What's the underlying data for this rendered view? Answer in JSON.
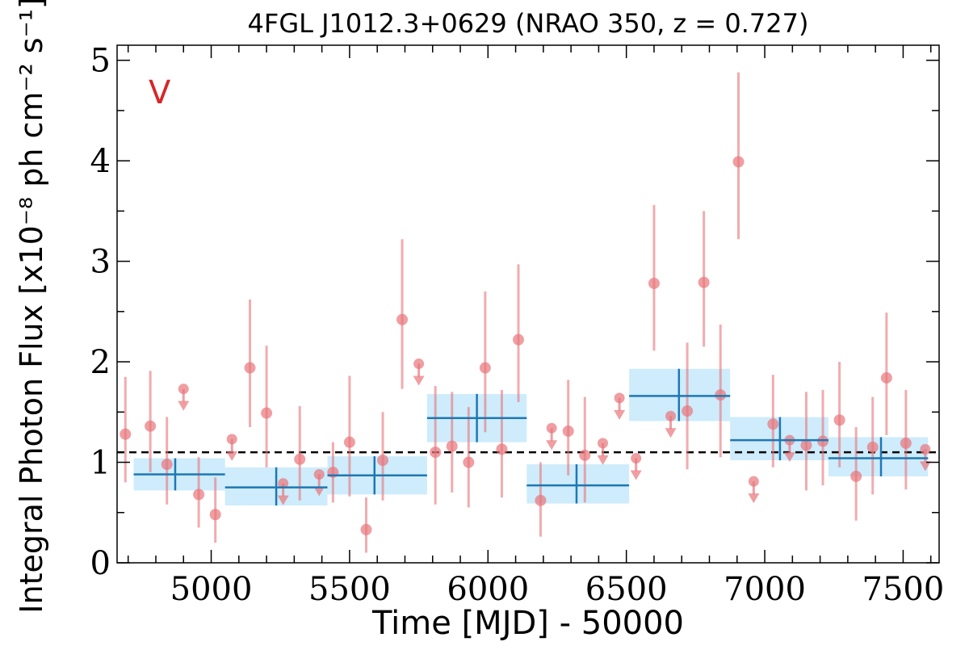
{
  "chart_data": {
    "type": "scatter",
    "title": "4FGL J1012.3+0629 (NRAO 350, z = 0.727)",
    "xlabel": "Time [MJD] - 50000",
    "ylabel": "Integral Photon Flux [x10⁻⁸ ph cm⁻² s⁻¹]",
    "annotation": "V",
    "xlim": [
      4660,
      7630
    ],
    "ylim": [
      0,
      5.15
    ],
    "xticks": [
      5000,
      5500,
      6000,
      6500,
      7000,
      7500
    ],
    "xtick_labels": [
      "5000",
      "5500",
      "6000",
      "6500",
      "7000",
      "7500"
    ],
    "yticks": [
      0,
      1,
      2,
      3,
      4,
      5
    ],
    "ytick_labels": [
      "0",
      "1",
      "2",
      "3",
      "4",
      "5"
    ],
    "mean_flux": 1.1,
    "colors": {
      "points": "#e8757a",
      "blocks_fill": "#b9e4f9",
      "blocks_line": "#1f77b4",
      "mean_line": "#000000",
      "annotation": "#d62728"
    },
    "points": [
      {
        "x": 4690,
        "y": 1.28,
        "lo": 0.8,
        "hi": 1.85
      },
      {
        "x": 4780,
        "y": 1.36,
        "lo": 0.9,
        "hi": 1.91
      },
      {
        "x": 4840,
        "y": 0.98,
        "lo": 0.58,
        "hi": 1.45
      },
      {
        "x": 4955,
        "y": 0.68,
        "lo": 0.35,
        "hi": 1.05
      },
      {
        "x": 5015,
        "y": 0.48,
        "lo": 0.2,
        "hi": 0.85
      },
      {
        "x": 5140,
        "y": 1.94,
        "lo": 1.35,
        "hi": 2.62
      },
      {
        "x": 5200,
        "y": 1.49,
        "lo": 0.95,
        "hi": 2.16
      },
      {
        "x": 5320,
        "y": 1.03,
        "lo": 0.62,
        "hi": 1.56
      },
      {
        "x": 5440,
        "y": 0.9,
        "lo": 0.6,
        "hi": 1.2
      },
      {
        "x": 5500,
        "y": 1.2,
        "lo": 0.66,
        "hi": 1.86
      },
      {
        "x": 5560,
        "y": 0.33,
        "lo": 0.1,
        "hi": 0.65
      },
      {
        "x": 5620,
        "y": 1.02,
        "lo": 0.62,
        "hi": 1.5
      },
      {
        "x": 5690,
        "y": 2.42,
        "lo": 1.73,
        "hi": 3.22
      },
      {
        "x": 5810,
        "y": 1.1,
        "lo": 0.58,
        "hi": 1.76
      },
      {
        "x": 5870,
        "y": 1.16,
        "lo": 0.7,
        "hi": 1.7
      },
      {
        "x": 5930,
        "y": 1.0,
        "lo": 0.55,
        "hi": 1.55
      },
      {
        "x": 5990,
        "y": 1.94,
        "lo": 1.3,
        "hi": 2.7
      },
      {
        "x": 6050,
        "y": 1.13,
        "lo": 0.65,
        "hi": 1.72
      },
      {
        "x": 6110,
        "y": 2.22,
        "lo": 1.6,
        "hi": 2.97
      },
      {
        "x": 6190,
        "y": 0.62,
        "lo": 0.26,
        "hi": 1.0
      },
      {
        "x": 6290,
        "y": 1.31,
        "lo": 0.87,
        "hi": 1.82
      },
      {
        "x": 6350,
        "y": 1.07,
        "lo": 0.6,
        "hi": 1.65
      },
      {
        "x": 6600,
        "y": 2.78,
        "lo": 2.11,
        "hi": 3.56
      },
      {
        "x": 6720,
        "y": 1.51,
        "lo": 0.93,
        "hi": 2.19
      },
      {
        "x": 6780,
        "y": 2.79,
        "lo": 2.15,
        "hi": 3.5
      },
      {
        "x": 6840,
        "y": 1.67,
        "lo": 1.05,
        "hi": 2.37
      },
      {
        "x": 6905,
        "y": 3.99,
        "lo": 3.22,
        "hi": 4.88
      },
      {
        "x": 7030,
        "y": 1.38,
        "lo": 0.95,
        "hi": 1.87
      },
      {
        "x": 7150,
        "y": 1.17,
        "lo": 0.72,
        "hi": 1.7
      },
      {
        "x": 7210,
        "y": 1.21,
        "lo": 0.77,
        "hi": 1.72
      },
      {
        "x": 7270,
        "y": 1.42,
        "lo": 0.95,
        "hi": 2.0
      },
      {
        "x": 7330,
        "y": 0.86,
        "lo": 0.42,
        "hi": 1.35
      },
      {
        "x": 7390,
        "y": 1.15,
        "lo": 0.68,
        "hi": 1.65
      },
      {
        "x": 7440,
        "y": 1.84,
        "lo": 1.27,
        "hi": 2.49
      },
      {
        "x": 7510,
        "y": 1.19,
        "lo": 0.73,
        "hi": 1.72
      }
    ],
    "upper_limits": [
      {
        "x": 4900,
        "y": 1.73
      },
      {
        "x": 5075,
        "y": 1.23
      },
      {
        "x": 5260,
        "y": 0.79
      },
      {
        "x": 5390,
        "y": 0.88
      },
      {
        "x": 5750,
        "y": 1.98
      },
      {
        "x": 6230,
        "y": 1.34
      },
      {
        "x": 6415,
        "y": 1.19
      },
      {
        "x": 6475,
        "y": 1.64
      },
      {
        "x": 6535,
        "y": 1.04
      },
      {
        "x": 6660,
        "y": 1.46
      },
      {
        "x": 6960,
        "y": 0.81
      },
      {
        "x": 7090,
        "y": 1.22
      },
      {
        "x": 7580,
        "y": 1.13
      }
    ],
    "blocks": [
      {
        "x0": 4720,
        "x1": 5050,
        "xc": 4870,
        "y": 0.88,
        "ylo": 0.72,
        "yhi": 1.04
      },
      {
        "x0": 5050,
        "x1": 5420,
        "xc": 5235,
        "y": 0.75,
        "ylo": 0.57,
        "yhi": 0.95
      },
      {
        "x0": 5420,
        "x1": 5780,
        "xc": 5590,
        "y": 0.87,
        "ylo": 0.68,
        "yhi": 1.06
      },
      {
        "x0": 5780,
        "x1": 6140,
        "xc": 5960,
        "y": 1.44,
        "ylo": 1.2,
        "yhi": 1.68
      },
      {
        "x0": 6140,
        "x1": 6510,
        "xc": 6320,
        "y": 0.77,
        "ylo": 0.59,
        "yhi": 0.98
      },
      {
        "x0": 6510,
        "x1": 6875,
        "xc": 6690,
        "y": 1.66,
        "ylo": 1.41,
        "yhi": 1.93
      },
      {
        "x0": 6875,
        "x1": 7230,
        "xc": 7055,
        "y": 1.22,
        "ylo": 1.02,
        "yhi": 1.45
      },
      {
        "x0": 7230,
        "x1": 7590,
        "xc": 7420,
        "y": 1.04,
        "ylo": 0.86,
        "yhi": 1.25
      }
    ]
  }
}
